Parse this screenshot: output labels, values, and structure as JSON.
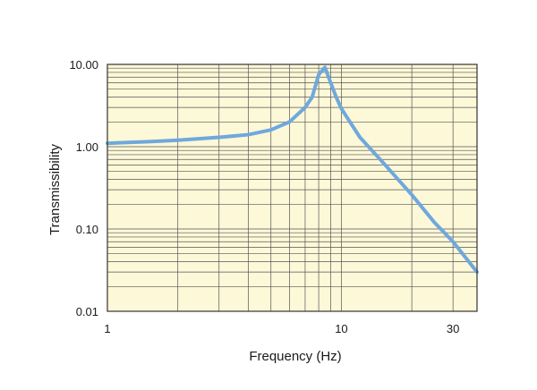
{
  "chart_data": {
    "type": "line",
    "title": "",
    "xlabel": "Frequency (Hz)",
    "ylabel": "Transmissibility",
    "x_scale": "log",
    "y_scale": "log",
    "xlim": [
      1,
      38
    ],
    "ylim": [
      0.01,
      10
    ],
    "x_ticks": [
      {
        "value": 1,
        "label": "1"
      },
      {
        "value": 10,
        "label": "10"
      },
      {
        "value": 30,
        "label": "30"
      }
    ],
    "y_ticks": [
      {
        "value": 10,
        "label": "10.00"
      },
      {
        "value": 1,
        "label": "1.00"
      },
      {
        "value": 0.1,
        "label": "0.10"
      },
      {
        "value": 0.01,
        "label": "0.01"
      }
    ],
    "grid": true,
    "legend": "none",
    "colors": {
      "plot_background": "#fdf8d8",
      "grid": "#555555",
      "line": "#6fa8dc",
      "frame": "#333333"
    },
    "series": [
      {
        "x": [
          1.0,
          1.5,
          2.0,
          3.0,
          4.0,
          5.0,
          6.0,
          7.0,
          7.5,
          8.0,
          8.5,
          9.0,
          9.5,
          10.0,
          12.0,
          15.0,
          20.0,
          25.0,
          30.0,
          38.0
        ],
        "y": [
          1.1,
          1.15,
          1.2,
          1.3,
          1.4,
          1.6,
          2.0,
          3.0,
          4.0,
          7.5,
          9.2,
          6.0,
          4.0,
          2.9,
          1.3,
          0.65,
          0.26,
          0.12,
          0.07,
          0.03
        ]
      }
    ]
  }
}
